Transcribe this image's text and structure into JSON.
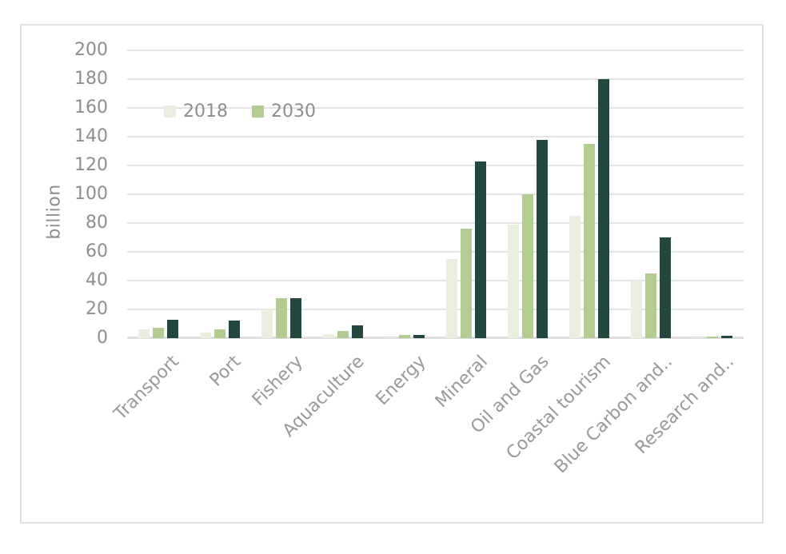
{
  "colors": {
    "frame_border": "#e2e2e2",
    "gridline": "#e4e4e4",
    "axis_text": "#8e8e8e",
    "category_text": "#999999"
  },
  "chart_data": {
    "type": "bar",
    "title": "",
    "xlabel": "",
    "ylabel": "billion",
    "ylim": [
      0,
      200
    ],
    "yticks": [
      0,
      20,
      40,
      60,
      80,
      100,
      120,
      140,
      160,
      180,
      200
    ],
    "grid": "horizontal",
    "legend_position": "inside-top-left",
    "legend": [
      "2018",
      "2030"
    ],
    "categories": [
      "Transport",
      "Port",
      "Fishery",
      "Aquaculture",
      "Energy",
      "Mineral",
      "Oil and Gas",
      "Coastal tourism",
      "Blue Carbon and..",
      "Research and.."
    ],
    "series": [
      {
        "name": "2018",
        "color": "#ebefe0",
        "values": [
          6,
          4,
          20,
          3,
          0.5,
          55,
          79,
          85,
          40,
          0.5
        ]
      },
      {
        "name": "2030",
        "color": "#b3cc92",
        "values": [
          7,
          6,
          28,
          5,
          2,
          76,
          100,
          135,
          45,
          1
        ]
      },
      {
        "name": "",
        "color": "#21473f",
        "values": [
          13,
          12,
          28,
          9,
          2.5,
          123,
          138,
          180,
          70,
          1.5
        ]
      }
    ]
  }
}
